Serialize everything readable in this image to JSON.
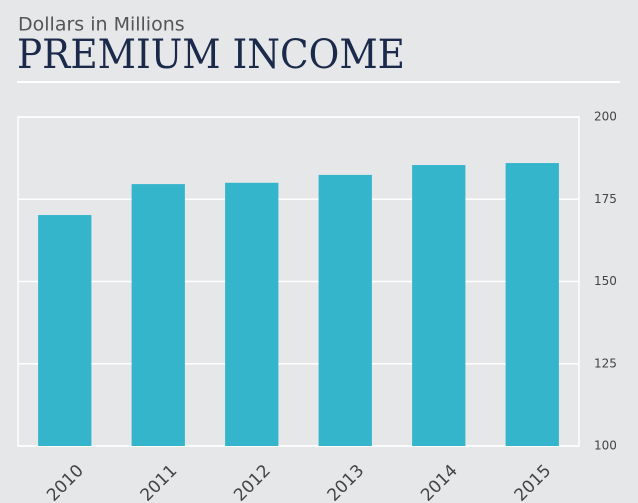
{
  "chart_data": {
    "type": "bar",
    "subtitle": "Dollars in Millions",
    "title": "PREMIUM INCOME",
    "categories": [
      "2010",
      "2011",
      "2012",
      "2013",
      "2014",
      "2015"
    ],
    "values": [
      170.2,
      179.6,
      180,
      182.4,
      185.4,
      186
    ],
    "color": "#35b5cc",
    "ylim": [
      100,
      200
    ],
    "yticks": [
      100,
      125,
      150,
      175,
      200
    ],
    "grid": true
  }
}
